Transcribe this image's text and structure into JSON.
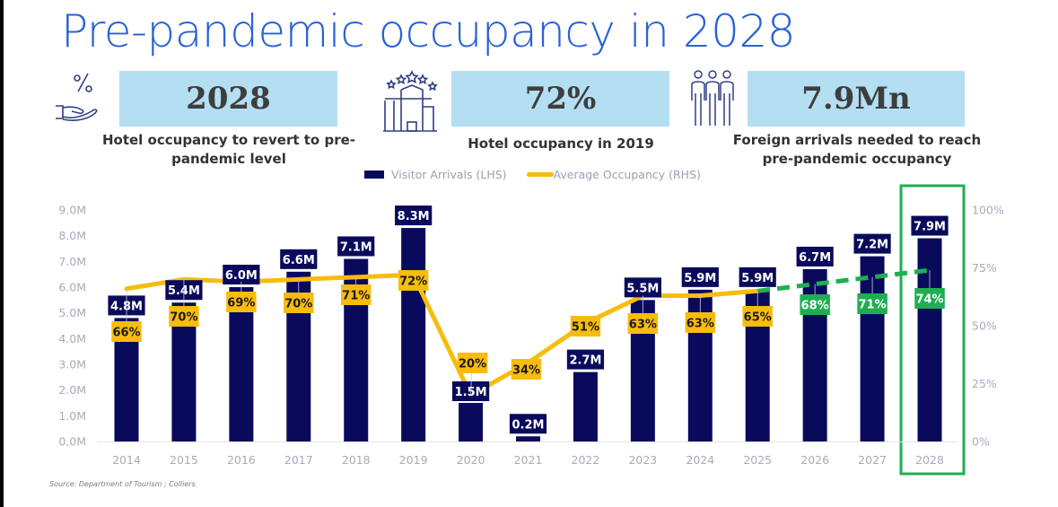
{
  "title": "Pre-pandemic occupancy in 2028",
  "kpis": [
    {
      "icon": "hand-percent-icon",
      "value": "2028",
      "caption_line1": "Hotel occupancy to revert to pre-",
      "caption_line2": "pandemic level"
    },
    {
      "icon": "hotel-stars-icon",
      "value": "72%",
      "caption_line1": "Hotel occupancy in 2019",
      "caption_line2": ""
    },
    {
      "icon": "people-group-icon",
      "value": "7.9Mn",
      "caption_line1": "Foreign arrivals needed to reach",
      "caption_line2": "pre-pandemic occupancy"
    }
  ],
  "source": "Source: Department of Tourism ; Colliers",
  "colors": {
    "bar": "#0a0a5c",
    "occupancy_actual": "#f7bc0e",
    "occupancy_forecast": "#1fae52",
    "highlight_box": "#1fae52",
    "axis_text": "#a6abbb",
    "title": "#2a62d6",
    "kpi_box": "#b4dff2"
  },
  "chart_data": {
    "type": "bar",
    "title": "",
    "legend": {
      "position": "top-center",
      "entries": [
        "Visitor Arrivals (LHS)",
        "Average Occupancy (RHS)"
      ]
    },
    "categories": [
      "2014",
      "2015",
      "2016",
      "2017",
      "2018",
      "2019",
      "2020",
      "2021",
      "2022",
      "2023",
      "2024",
      "2025",
      "2026",
      "2027",
      "2028"
    ],
    "series": [
      {
        "name": "Visitor Arrivals (LHS)",
        "type": "bar",
        "axis": "left",
        "values": [
          4.8,
          5.4,
          6.0,
          6.6,
          7.1,
          8.3,
          1.5,
          0.2,
          2.7,
          5.5,
          5.9,
          5.9,
          6.7,
          7.2,
          7.9
        ],
        "labels": [
          "4.8M",
          "5.4M",
          "6.0M",
          "6.6M",
          "7.1M",
          "8.3M",
          "1.5M",
          "0.2M",
          "2.7M",
          "5.5M",
          "5.9M",
          "5.9M",
          "6.7M",
          "7.2M",
          "7.9M"
        ]
      },
      {
        "name": "Average Occupancy (RHS)",
        "type": "line",
        "axis": "right",
        "values": [
          66,
          70,
          69,
          70,
          71,
          72,
          20,
          34,
          51,
          63,
          63,
          65,
          68,
          71,
          74
        ],
        "labels": [
          "66%",
          "70%",
          "69%",
          "70%",
          "71%",
          "72%",
          "20%",
          "34%",
          "51%",
          "63%",
          "63%",
          "65%",
          "68%",
          "71%",
          "74%"
        ],
        "forecast_from": "2025"
      }
    ],
    "left_axis": {
      "ticks": [
        "0.0M",
        "1.0M",
        "2.0M",
        "3.0M",
        "4.0M",
        "5.0M",
        "6.0M",
        "7.0M",
        "8.0M",
        "9.0M"
      ],
      "ylim": [
        0,
        9
      ]
    },
    "right_axis": {
      "ticks": [
        "0%",
        "25%",
        "50%",
        "75%",
        "100%"
      ],
      "ylim": [
        0,
        100
      ]
    },
    "highlight_category": "2028",
    "grid": false
  }
}
